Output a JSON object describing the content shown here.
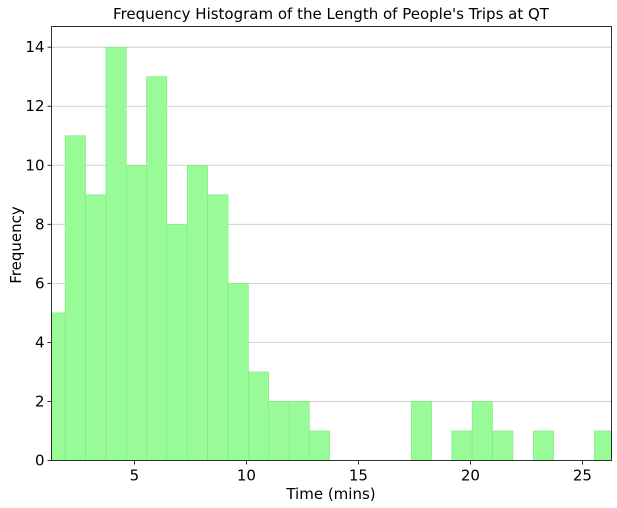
{
  "chart_data": {
    "type": "bar",
    "title": "Frequency Histogram of the Length of People's Trips at QT",
    "xlabel": "Time (mins)",
    "ylabel": "Frequency",
    "bin_width": 0.9086,
    "bins": [
      {
        "x0": 1.0,
        "count": 5
      },
      {
        "x0": 1.91,
        "count": 11
      },
      {
        "x0": 2.82,
        "count": 9
      },
      {
        "x0": 3.73,
        "count": 14
      },
      {
        "x0": 4.64,
        "count": 10
      },
      {
        "x0": 5.54,
        "count": 13
      },
      {
        "x0": 6.45,
        "count": 8
      },
      {
        "x0": 7.36,
        "count": 10
      },
      {
        "x0": 8.27,
        "count": 9
      },
      {
        "x0": 9.18,
        "count": 6
      },
      {
        "x0": 10.09,
        "count": 3
      },
      {
        "x0": 11.0,
        "count": 2
      },
      {
        "x0": 11.9,
        "count": 2
      },
      {
        "x0": 12.81,
        "count": 1
      },
      {
        "x0": 13.72,
        "count": 0
      },
      {
        "x0": 14.63,
        "count": 0
      },
      {
        "x0": 15.54,
        "count": 0
      },
      {
        "x0": 16.45,
        "count": 0
      },
      {
        "x0": 17.36,
        "count": 2
      },
      {
        "x0": 18.26,
        "count": 0
      },
      {
        "x0": 19.17,
        "count": 1
      },
      {
        "x0": 20.08,
        "count": 2
      },
      {
        "x0": 20.99,
        "count": 1
      },
      {
        "x0": 21.9,
        "count": 0
      },
      {
        "x0": 22.81,
        "count": 1
      },
      {
        "x0": 23.72,
        "count": 0
      },
      {
        "x0": 24.62,
        "count": 0
      },
      {
        "x0": 25.53,
        "count": 1
      }
    ],
    "xlim": [
      1.3,
      26.3
    ],
    "ylim": [
      0,
      14.7
    ],
    "xticks": [
      5,
      10,
      15,
      20,
      25
    ],
    "yticks": [
      0,
      2,
      4,
      6,
      8,
      10,
      12,
      14
    ],
    "grid": "y-axis horizontal lines",
    "bar_color": "#98fb98",
    "edge_color": "#7eea7e",
    "grid_color": "#c8c8c8"
  }
}
